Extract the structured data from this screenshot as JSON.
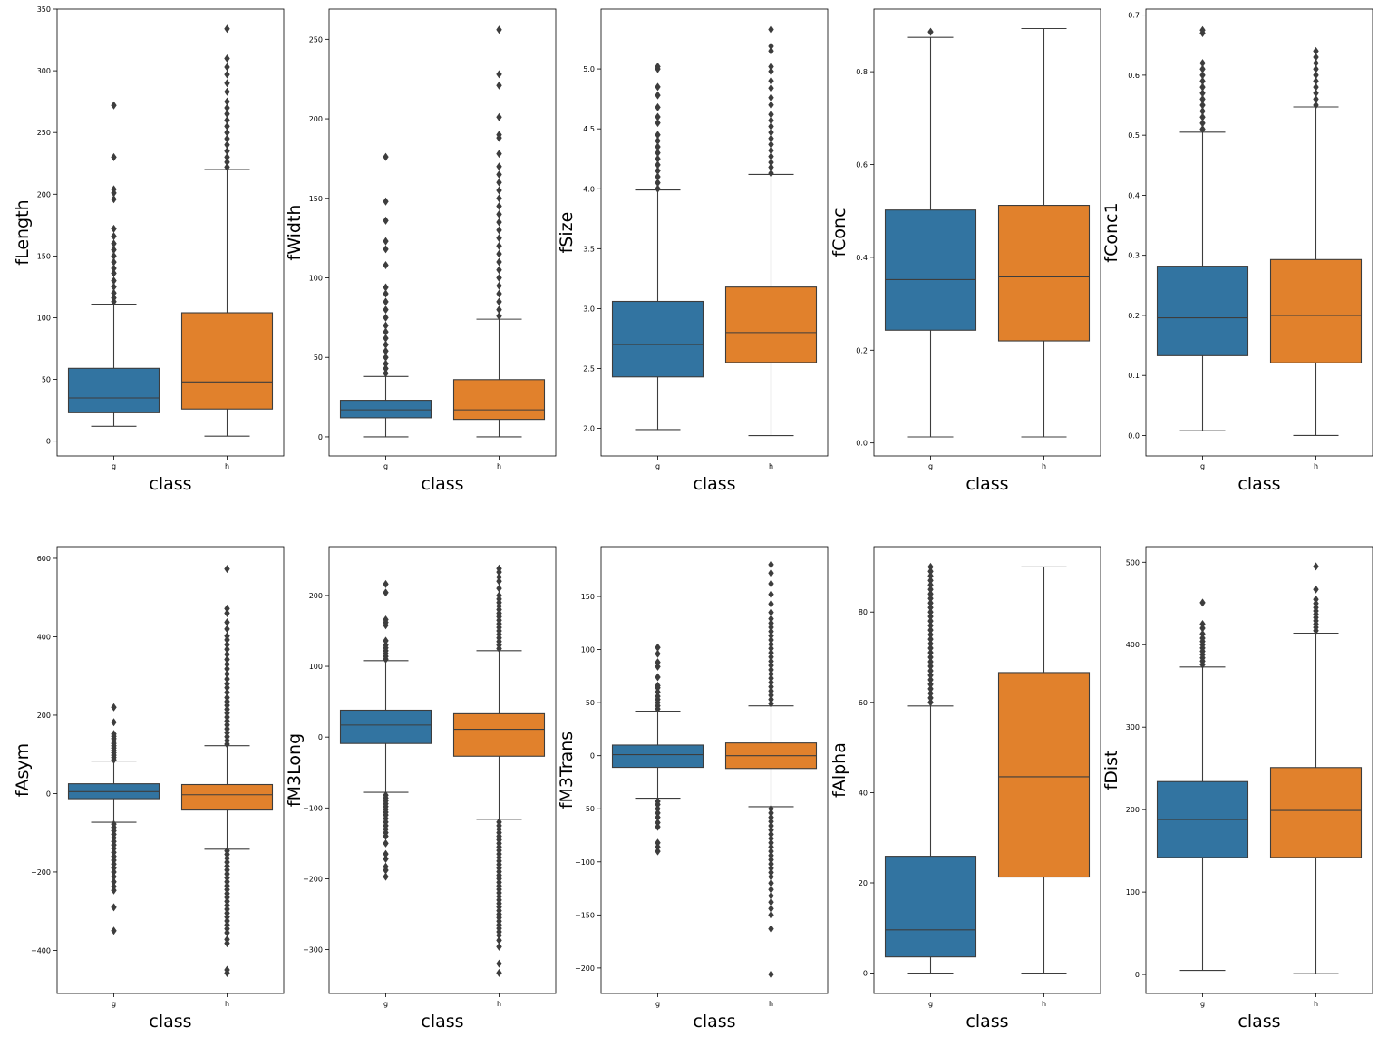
{
  "figure": {
    "background": "#ffffff"
  },
  "colors": {
    "g": "#3274a1",
    "h": "#e1812c",
    "line": "#3d3d3d",
    "axis": "#000000"
  },
  "chart_data": [
    {
      "type": "box",
      "ylabel": "fLength",
      "xlabel": "class",
      "categories": [
        "g",
        "h"
      ],
      "yticks": [
        0,
        50,
        100,
        150,
        200,
        250,
        300,
        350
      ],
      "ylim": [
        -12,
        350
      ],
      "boxes": [
        {
          "name": "g",
          "whisker_low": 12,
          "q1": 23,
          "median": 35,
          "q3": 59,
          "whisker_high": 111,
          "outliers": [
            113,
            116,
            120,
            125,
            130,
            136,
            140,
            145,
            150,
            155,
            160,
            166,
            172,
            196,
            201,
            204,
            230,
            272
          ]
        },
        {
          "name": "h",
          "whisker_low": 4,
          "q1": 26,
          "median": 48,
          "q3": 104,
          "whisker_high": 220,
          "outliers": [
            222,
            226,
            230,
            235,
            240,
            245,
            250,
            255,
            260,
            265,
            270,
            275,
            283,
            290,
            297,
            303,
            310,
            334
          ]
        }
      ]
    },
    {
      "type": "box",
      "ylabel": "fWidth",
      "xlabel": "class",
      "categories": [
        "g",
        "h"
      ],
      "yticks": [
        0,
        50,
        100,
        150,
        200,
        250
      ],
      "ylim": [
        -12,
        269
      ],
      "boxes": [
        {
          "name": "g",
          "whisker_low": 0,
          "q1": 12,
          "median": 17,
          "q3": 23,
          "whisker_high": 38,
          "outliers": [
            40,
            43,
            46,
            50,
            54,
            58,
            62,
            66,
            70,
            75,
            80,
            85,
            90,
            94,
            108,
            118,
            123,
            136,
            148,
            176
          ]
        },
        {
          "name": "h",
          "whisker_low": 0,
          "q1": 11,
          "median": 17,
          "q3": 36,
          "whisker_high": 74,
          "outliers": [
            76,
            80,
            85,
            90,
            95,
            100,
            105,
            110,
            115,
            120,
            125,
            130,
            135,
            140,
            145,
            150,
            155,
            160,
            165,
            170,
            178,
            188,
            190,
            201,
            221,
            228,
            256
          ]
        }
      ]
    },
    {
      "type": "box",
      "ylabel": "fSize",
      "xlabel": "class",
      "categories": [
        "g",
        "h"
      ],
      "yticks": [
        2.0,
        2.5,
        3.0,
        3.5,
        4.0,
        4.5,
        5.0
      ],
      "tick_labels": [
        "2.0",
        "2.5",
        "3.0",
        "3.5",
        "4.0",
        "4.5",
        "5.0"
      ],
      "ylim": [
        1.77,
        5.5
      ],
      "boxes": [
        {
          "name": "g",
          "whisker_low": 1.99,
          "q1": 2.43,
          "median": 2.7,
          "q3": 3.06,
          "whisker_high": 3.99,
          "outliers": [
            4.0,
            4.05,
            4.1,
            4.15,
            4.2,
            4.25,
            4.3,
            4.35,
            4.4,
            4.45,
            4.55,
            4.6,
            4.68,
            4.78,
            4.85,
            5.0,
            5.02
          ]
        },
        {
          "name": "h",
          "whisker_low": 1.94,
          "q1": 2.55,
          "median": 2.8,
          "q3": 3.18,
          "whisker_high": 4.12,
          "outliers": [
            4.13,
            4.18,
            4.22,
            4.27,
            4.32,
            4.37,
            4.42,
            4.47,
            4.52,
            4.57,
            4.62,
            4.7,
            4.76,
            4.84,
            4.9,
            4.98,
            5.02,
            5.15,
            5.19,
            5.33
          ]
        }
      ]
    },
    {
      "type": "box",
      "ylabel": "fConc",
      "xlabel": "class",
      "categories": [
        "g",
        "h"
      ],
      "yticks": [
        0.0,
        0.2,
        0.4,
        0.6,
        0.8
      ],
      "tick_labels": [
        "0.0",
        "0.2",
        "0.4",
        "0.6",
        "0.8"
      ],
      "ylim": [
        -0.028,
        0.935
      ],
      "boxes": [
        {
          "name": "g",
          "whisker_low": 0.013,
          "q1": 0.243,
          "median": 0.352,
          "q3": 0.502,
          "whisker_high": 0.874,
          "outliers": [
            0.886
          ]
        },
        {
          "name": "h",
          "whisker_low": 0.013,
          "q1": 0.22,
          "median": 0.358,
          "q3": 0.512,
          "whisker_high": 0.893,
          "outliers": []
        }
      ]
    },
    {
      "type": "box",
      "ylabel": "fConc1",
      "xlabel": "class",
      "categories": [
        "g",
        "h"
      ],
      "yticks": [
        0.0,
        0.1,
        0.2,
        0.3,
        0.4,
        0.5,
        0.6,
        0.7
      ],
      "tick_labels": [
        "0.0",
        "0.1",
        "0.2",
        "0.3",
        "0.4",
        "0.5",
        "0.6",
        "0.7"
      ],
      "ylim": [
        -0.034,
        0.71
      ],
      "boxes": [
        {
          "name": "g",
          "whisker_low": 0.008,
          "q1": 0.133,
          "median": 0.196,
          "q3": 0.282,
          "whisker_high": 0.505,
          "outliers": [
            0.51,
            0.52,
            0.53,
            0.54,
            0.55,
            0.56,
            0.57,
            0.58,
            0.59,
            0.6,
            0.61,
            0.62,
            0.67,
            0.675
          ]
        },
        {
          "name": "h",
          "whisker_low": 0.0,
          "q1": 0.121,
          "median": 0.2,
          "q3": 0.293,
          "whisker_high": 0.547,
          "outliers": [
            0.55,
            0.56,
            0.57,
            0.58,
            0.59,
            0.6,
            0.61,
            0.62,
            0.63,
            0.64
          ]
        }
      ]
    },
    {
      "type": "box",
      "ylabel": "fAsym",
      "xlabel": "class",
      "categories": [
        "g",
        "h"
      ],
      "yticks": [
        -400,
        -200,
        0,
        200,
        400,
        600
      ],
      "tick_labels": [
        "−400",
        "−200",
        "0",
        "200",
        "400",
        "600"
      ],
      "ylim": [
        -510,
        630
      ],
      "boxes": [
        {
          "name": "g",
          "whisker_low": -73,
          "q1": -13,
          "median": 5,
          "q3": 25,
          "whisker_high": 83,
          "outliers": [
            86,
            92,
            98,
            104,
            110,
            116,
            122,
            128,
            134,
            140,
            146,
            152,
            182,
            220,
            -78,
            -86,
            -95,
            -104,
            -113,
            -122,
            -131,
            -140,
            -150,
            -160,
            -170,
            -180,
            -190,
            -200,
            -212,
            -225,
            -237,
            -247,
            -290,
            -350
          ]
        },
        {
          "name": "h",
          "whisker_low": -142,
          "q1": -42,
          "median": -3,
          "q3": 23,
          "whisker_high": 122,
          "outliers": [
            126,
            135,
            145,
            155,
            165,
            175,
            185,
            195,
            205,
            215,
            225,
            235,
            245,
            258,
            270,
            280,
            292,
            305,
            318,
            330,
            342,
            355,
            368,
            380,
            392,
            402,
            420,
            437,
            460,
            472,
            573,
            -146,
            -155,
            -165,
            -175,
            -185,
            -195,
            -205,
            -215,
            -225,
            -235,
            -245,
            -255,
            -265,
            -275,
            -285,
            -295,
            -305,
            -315,
            -325,
            -335,
            -345,
            -355,
            -372,
            -382,
            -450,
            -458
          ]
        }
      ]
    },
    {
      "type": "box",
      "ylabel": "fM3Long",
      "xlabel": "class",
      "categories": [
        "g",
        "h"
      ],
      "yticks": [
        -300,
        -200,
        -100,
        0,
        100,
        200
      ],
      "tick_labels": [
        "−300",
        "−200",
        "−100",
        "0",
        "100",
        "200"
      ],
      "ylim": [
        -362,
        269
      ],
      "boxes": [
        {
          "name": "g",
          "whisker_low": -78,
          "q1": -9,
          "median": 17,
          "q3": 38,
          "whisker_high": 108,
          "outliers": [
            110,
            114,
            118,
            122,
            126,
            130,
            136,
            158,
            162,
            166,
            204,
            216,
            -82,
            -86,
            -90,
            -94,
            -98,
            -102,
            -106,
            -110,
            -115,
            -120,
            -125,
            -130,
            -135,
            -140,
            -150,
            -165,
            -172,
            -183,
            -188,
            -197
          ]
        },
        {
          "name": "h",
          "whisker_low": -116,
          "q1": -27,
          "median": 11,
          "q3": 33,
          "whisker_high": 122,
          "outliers": [
            125,
            130,
            135,
            140,
            145,
            150,
            155,
            160,
            165,
            170,
            175,
            180,
            185,
            190,
            195,
            200,
            210,
            220,
            226,
            233,
            238,
            -120,
            -125,
            -130,
            -135,
            -140,
            -145,
            -150,
            -155,
            -160,
            -165,
            -170,
            -175,
            -180,
            -185,
            -190,
            -195,
            -200,
            -205,
            -210,
            -215,
            -220,
            -225,
            -230,
            -235,
            -240,
            -245,
            -250,
            -255,
            -260,
            -265,
            -270,
            -275,
            -280,
            -287,
            -296,
            -320,
            -333
          ]
        }
      ]
    },
    {
      "type": "box",
      "ylabel": "fM3Trans",
      "xlabel": "class",
      "categories": [
        "g",
        "h"
      ],
      "yticks": [
        -200,
        -150,
        -100,
        -50,
        0,
        50,
        100,
        150
      ],
      "tick_labels": [
        "−200",
        "−150",
        "−100",
        "−50",
        "0",
        "50",
        "100",
        "150"
      ],
      "ylim": [
        -224,
        197
      ],
      "boxes": [
        {
          "name": "g",
          "whisker_low": -40,
          "q1": -11,
          "median": 1,
          "q3": 10,
          "whisker_high": 42,
          "outliers": [
            44,
            47,
            50,
            53,
            56,
            60,
            64,
            66,
            74,
            84,
            88,
            96,
            102,
            -43,
            -46,
            -50,
            -54,
            -58,
            -63,
            -67,
            -82,
            -86,
            -90
          ]
        },
        {
          "name": "h",
          "whisker_low": -48,
          "q1": -12,
          "median": 0,
          "q3": 12,
          "whisker_high": 47,
          "outliers": [
            49,
            53,
            57,
            61,
            65,
            69,
            73,
            77,
            81,
            85,
            89,
            93,
            97,
            101,
            105,
            109,
            113,
            117,
            121,
            125,
            129,
            135,
            143,
            152,
            162,
            172,
            180,
            -50,
            -54,
            -58,
            -62,
            -66,
            -70,
            -74,
            -78,
            -82,
            -86,
            -90,
            -94,
            -98,
            -102,
            -106,
            -110,
            -114,
            -120,
            -126,
            -132,
            -138,
            -144,
            -150,
            -163,
            -206
          ]
        }
      ]
    },
    {
      "type": "box",
      "ylabel": "fAlpha",
      "xlabel": "class",
      "categories": [
        "g",
        "h"
      ],
      "yticks": [
        0,
        20,
        40,
        60,
        80
      ],
      "ylim": [
        -4.5,
        94.5
      ],
      "boxes": [
        {
          "name": "g",
          "whisker_low": 0,
          "q1": 3.6,
          "median": 9.6,
          "q3": 25.9,
          "whisker_high": 59.2,
          "outliers": [
            60,
            61,
            62,
            63,
            64,
            65,
            66,
            67,
            68,
            69,
            70,
            71,
            72,
            73,
            74,
            75,
            76,
            77,
            78,
            79,
            80,
            81,
            82,
            83,
            84,
            85,
            86,
            87,
            88,
            89,
            90
          ]
        },
        {
          "name": "h",
          "whisker_low": 0,
          "q1": 21.3,
          "median": 43.5,
          "q3": 66.6,
          "whisker_high": 90,
          "outliers": []
        }
      ]
    },
    {
      "type": "box",
      "ylabel": "fDist",
      "xlabel": "class",
      "categories": [
        "g",
        "h"
      ],
      "yticks": [
        0,
        100,
        200,
        300,
        400,
        500
      ],
      "ylim": [
        -23,
        519
      ],
      "boxes": [
        {
          "name": "g",
          "whisker_low": 5,
          "q1": 142,
          "median": 188,
          "q3": 234,
          "whisker_high": 373,
          "outliers": [
            376,
            380,
            384,
            388,
            392,
            396,
            400,
            404,
            408,
            413,
            420,
            425,
            451
          ]
        },
        {
          "name": "h",
          "whisker_low": 1,
          "q1": 142,
          "median": 199,
          "q3": 251,
          "whisker_high": 414,
          "outliers": [
            417,
            421,
            425,
            429,
            433,
            437,
            441,
            445,
            450,
            455,
            467,
            495
          ]
        }
      ]
    }
  ]
}
